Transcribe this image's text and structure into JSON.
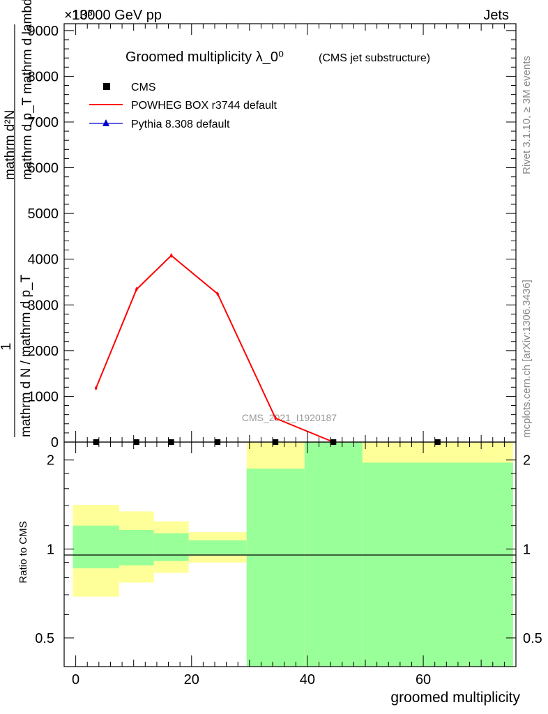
{
  "header": {
    "left": "13000 GeV pp",
    "right": "Jets",
    "exponent": "×10³"
  },
  "title_main": "Groomed multiplicity λ_0⁰",
  "title_sub": "(CMS jet substructure)",
  "watermark": "CMS_2021_I1920187",
  "side_top": "Rivet 3.1.10, ≥ 3M events",
  "side_bottom": "mcplots.cern.ch [arXiv:1306.3436]",
  "ylabel_upper_lines": [
    "1",
    "mathrm d N / mathrm d p_T",
    "mathrm d²N",
    "mathrm d p_T mathrm d lambda"
  ],
  "ylabel_lower": "Ratio to CMS",
  "xlabel": "groomed multiplicity",
  "legend": [
    {
      "label": "CMS",
      "marker": "square",
      "color": "#000000"
    },
    {
      "label": "POWHEG BOX r3744 default",
      "marker": "line",
      "color": "#ff0000"
    },
    {
      "label": "Pythia 8.308 default",
      "marker": "triangle",
      "color": "#0000cc"
    }
  ],
  "chart_data": [
    {
      "type": "line",
      "panel": "main",
      "title": "Groomed multiplicity λ_0⁰",
      "xlabel": "groomed multiplicity",
      "ylabel": "1 / (dN/dp_T) · d²N / (dp_T dλ)",
      "x_ticks": [
        0,
        20,
        40,
        60
      ],
      "y_ticks": [
        0,
        1000,
        2000,
        3000,
        4000,
        5000,
        6000,
        7000,
        8000,
        9000
      ],
      "y_tick_labels": [
        "0",
        "1000",
        "2000",
        "3000",
        "4000",
        "5000",
        "6000",
        "7000",
        "8000",
        "9000"
      ],
      "xlim": [
        -2,
        76
      ],
      "ylim": [
        0,
        9150
      ],
      "y_multiplier": "×10³",
      "bins": [
        [
          -0.5,
          7.5
        ],
        [
          7.5,
          13.5
        ],
        [
          13.5,
          19.5
        ],
        [
          19.5,
          29.5
        ],
        [
          29.5,
          39.5
        ],
        [
          39.5,
          49.5
        ],
        [
          49.5,
          75.5
        ]
      ],
      "series": [
        {
          "name": "CMS",
          "x": [
            3.5,
            10.5,
            16.5,
            24.5,
            34.5,
            44.5,
            62.5
          ],
          "y": [
            0,
            0,
            0,
            0,
            0,
            0,
            0
          ]
        },
        {
          "name": "POWHEG BOX r3744 default",
          "x": [
            3.5,
            10.5,
            16.5,
            24.5,
            34.5,
            44.5
          ],
          "y": [
            1180,
            3340,
            4080,
            3240,
            520,
            0
          ]
        },
        {
          "name": "Pythia 8.308 default",
          "x": [],
          "y": []
        }
      ]
    },
    {
      "type": "area",
      "panel": "ratio",
      "ylabel": "Ratio to CMS",
      "xlabel": "groomed multiplicity",
      "log_y": true,
      "ylim": [
        0.4,
        2.3
      ],
      "y_ticks": [
        0.5,
        1,
        2
      ],
      "y_tick_labels": [
        "0.5",
        "1",
        "2"
      ],
      "reference_line": 1,
      "bands": [
        {
          "xlo": -0.5,
          "xhi": 7.5,
          "stat_lo": 0.86,
          "stat_hi": 1.2,
          "tot_lo": 0.69,
          "tot_hi": 1.41
        },
        {
          "xlo": 7.5,
          "xhi": 13.5,
          "stat_lo": 0.88,
          "stat_hi": 1.16,
          "tot_lo": 0.77,
          "tot_hi": 1.34
        },
        {
          "xlo": 13.5,
          "xhi": 19.5,
          "stat_lo": 0.91,
          "stat_hi": 1.13,
          "tot_lo": 0.83,
          "tot_hi": 1.24
        },
        {
          "xlo": 19.5,
          "xhi": 29.5,
          "stat_lo": 0.95,
          "stat_hi": 1.07,
          "tot_lo": 0.9,
          "tot_hi": 1.14
        },
        {
          "xlo": 29.5,
          "xhi": 39.5,
          "stat_lo": 0.4,
          "stat_hi": 1.87,
          "tot_lo": 0.4,
          "tot_hi": 2.3
        },
        {
          "xlo": 39.5,
          "xhi": 49.5,
          "stat_lo": 0.4,
          "stat_hi": 2.3,
          "tot_lo": 0.4,
          "tot_hi": 2.3
        },
        {
          "xlo": 49.5,
          "xhi": 75.5,
          "stat_lo": 0.4,
          "stat_hi": 1.96,
          "tot_lo": 0.4,
          "tot_hi": 2.3
        }
      ]
    }
  ],
  "colors": {
    "stat_band": "#99ff99",
    "total_band": "#ffff99",
    "cms": "#000000",
    "powheg": "#ff0000",
    "pythia": "#0000cc",
    "side_text": "#888888",
    "watermark": "#999999"
  }
}
